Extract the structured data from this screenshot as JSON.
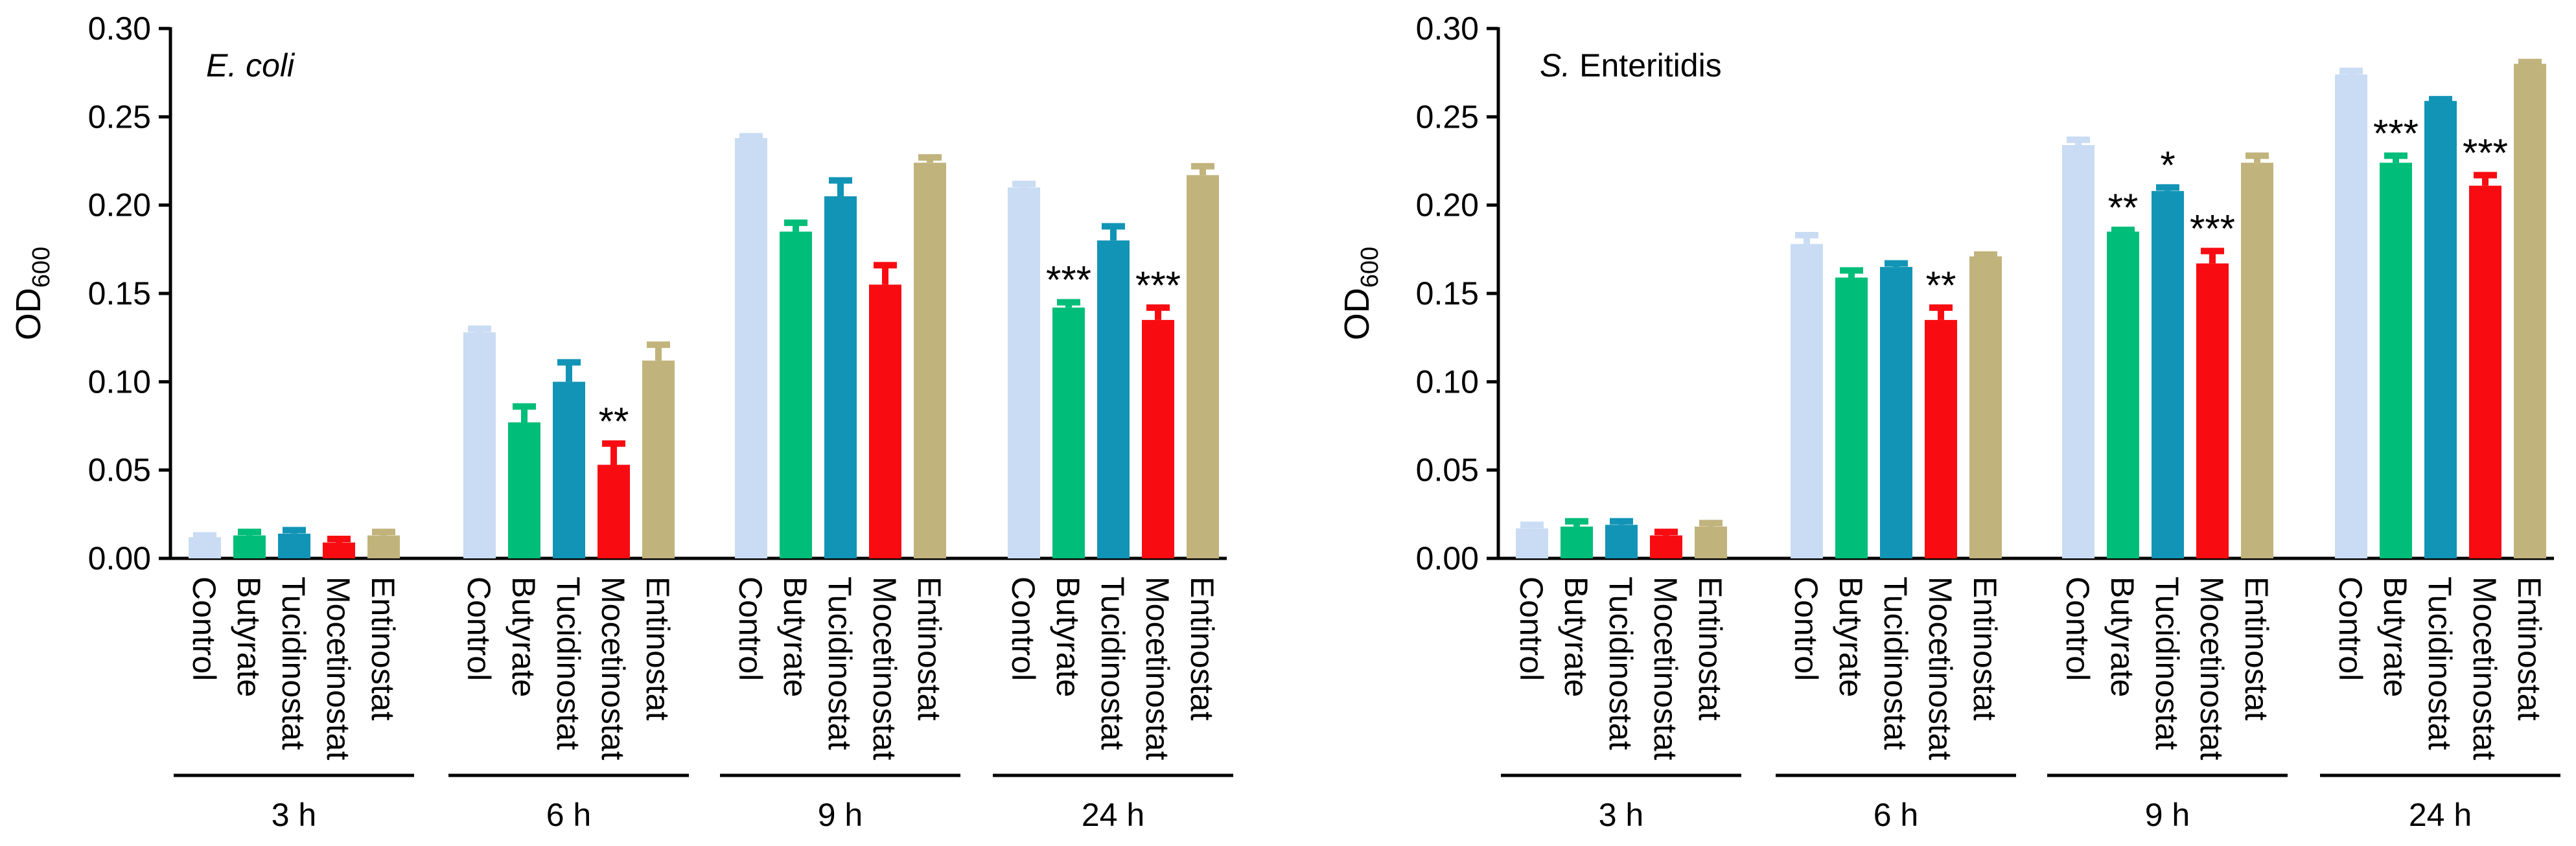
{
  "colors": {
    "Control": "#c9dcf3",
    "Butyrate": "#00bd79",
    "Tucidinostat": "#1294b6",
    "Mocetinostat": "#f80c12",
    "Entinostat": "#c1b37c"
  },
  "chart_data": [
    {
      "type": "bar",
      "title": "E. coli",
      "title_italic_part": "E. coli",
      "title_regular_part": "",
      "ylabel": "OD",
      "ylabel_sub": "600",
      "ylim": [
        0,
        0.3
      ],
      "yticks": [
        "0.00",
        "0.05",
        "0.10",
        "0.15",
        "0.20",
        "0.25",
        "0.30"
      ],
      "categories": [
        "Control",
        "Butyrate",
        "Tucidinostat",
        "Mocetinostat",
        "Entinostat"
      ],
      "groups": [
        "3 h",
        "6 h",
        "9 h",
        "24 h"
      ],
      "series": [
        {
          "name": "3 h",
          "values": [
            0.012,
            0.013,
            0.014,
            0.009,
            0.013
          ],
          "errors": [
            0.001,
            0.002,
            0.002,
            0.002,
            0.002
          ],
          "sig": [
            "",
            "",
            "",
            "",
            ""
          ]
        },
        {
          "name": "6 h",
          "values": [
            0.128,
            0.077,
            0.1,
            0.053,
            0.112
          ],
          "errors": [
            0.002,
            0.009,
            0.011,
            0.012,
            0.009
          ],
          "sig": [
            "",
            "",
            "",
            "**",
            ""
          ]
        },
        {
          "name": "9 h",
          "values": [
            0.238,
            0.185,
            0.205,
            0.155,
            0.224
          ],
          "errors": [
            0.001,
            0.005,
            0.009,
            0.011,
            0.003
          ],
          "sig": [
            "",
            "",
            "",
            "",
            ""
          ]
        },
        {
          "name": "24 h",
          "values": [
            0.21,
            0.142,
            0.18,
            0.135,
            0.217
          ],
          "errors": [
            0.002,
            0.003,
            0.008,
            0.007,
            0.005
          ],
          "sig": [
            "",
            "***",
            "",
            "***",
            ""
          ]
        }
      ]
    },
    {
      "type": "bar",
      "title": "S. Enteritidis",
      "title_italic_part": "S.",
      "title_regular_part": " Enteritidis",
      "ylabel": "OD",
      "ylabel_sub": "600",
      "ylim": [
        0,
        0.3
      ],
      "yticks": [
        "0.00",
        "0.05",
        "0.10",
        "0.15",
        "0.20",
        "0.25",
        "0.30"
      ],
      "categories": [
        "Control",
        "Butyrate",
        "Tucidinostat",
        "Mocetinostat",
        "Entinostat"
      ],
      "groups": [
        "3 h",
        "6 h",
        "9 h",
        "24 h"
      ],
      "series": [
        {
          "name": "3 h",
          "values": [
            0.017,
            0.018,
            0.019,
            0.013,
            0.018
          ],
          "errors": [
            0.002,
            0.003,
            0.002,
            0.002,
            0.002
          ],
          "sig": [
            "",
            "",
            "",
            "",
            ""
          ]
        },
        {
          "name": "6 h",
          "values": [
            0.178,
            0.159,
            0.165,
            0.135,
            0.171
          ],
          "errors": [
            0.005,
            0.004,
            0.002,
            0.007,
            0.001
          ],
          "sig": [
            "",
            "",
            "",
            "**",
            ""
          ]
        },
        {
          "name": "9 h",
          "values": [
            0.234,
            0.185,
            0.208,
            0.167,
            0.224
          ],
          "errors": [
            0.003,
            0.001,
            0.002,
            0.007,
            0.004
          ],
          "sig": [
            "",
            "**",
            "*",
            "***",
            ""
          ]
        },
        {
          "name": "24 h",
          "values": [
            0.274,
            0.224,
            0.259,
            0.211,
            0.28
          ],
          "errors": [
            0.002,
            0.004,
            0.001,
            0.006,
            0.001
          ],
          "sig": [
            "",
            "***",
            "",
            "***",
            ""
          ]
        }
      ]
    }
  ]
}
